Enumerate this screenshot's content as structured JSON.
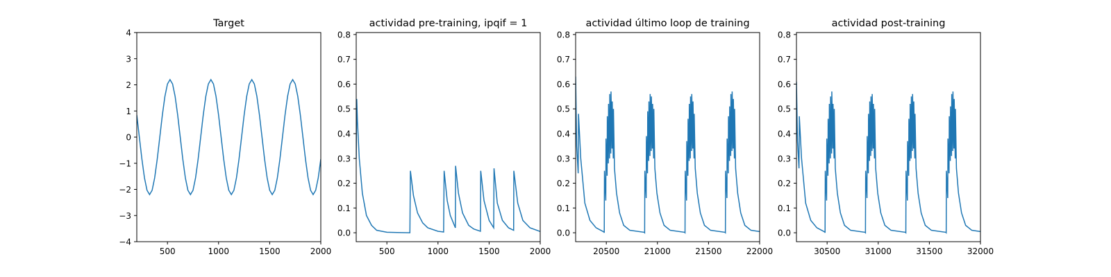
{
  "chart_data": [
    {
      "type": "line",
      "title": "Target",
      "color": "#1f77b4",
      "xlim": [
        200,
        2000
      ],
      "xticks": [
        500,
        1000,
        1500,
        2000
      ],
      "ylim": [
        -4,
        4
      ],
      "yticks": [
        {
          "value": -4,
          "label": "−4"
        },
        {
          "value": -3,
          "label": "−3"
        },
        {
          "value": -2,
          "label": "−2"
        },
        {
          "value": -1,
          "label": "−1"
        },
        0,
        1,
        2,
        3,
        4
      ],
      "x": [
        200,
        225,
        250,
        275,
        300,
        325,
        350,
        375,
        400,
        425,
        450,
        475,
        500,
        525,
        550,
        575,
        600,
        625,
        650,
        675,
        700,
        725,
        750,
        775,
        800,
        825,
        850,
        875,
        900,
        925,
        950,
        975,
        1000,
        1025,
        1050,
        1075,
        1100,
        1125,
        1150,
        1175,
        1200,
        1225,
        1250,
        1275,
        1300,
        1325,
        1350,
        1375,
        1400,
        1425,
        1450,
        1475,
        1500,
        1525,
        1550,
        1575,
        1600,
        1625,
        1650,
        1675,
        1700,
        1725,
        1750,
        1775,
        1800,
        1825,
        1850,
        1875,
        1900,
        1925,
        1950,
        1975,
        2000
      ],
      "values": [
        0.842,
        0,
        -0.842,
        -1.556,
        -2.033,
        -2.2,
        -2.033,
        -1.556,
        -0.842,
        0,
        0.842,
        1.556,
        2.033,
        2.2,
        2.033,
        1.556,
        0.842,
        0,
        -0.842,
        -1.556,
        -2.033,
        -2.2,
        -2.033,
        -1.556,
        -0.842,
        0,
        0.842,
        1.556,
        2.033,
        2.2,
        2.033,
        1.556,
        0.842,
        0,
        -0.842,
        -1.556,
        -2.033,
        -2.2,
        -2.033,
        -1.556,
        -0.842,
        0,
        0.842,
        1.556,
        2.033,
        2.2,
        2.033,
        1.556,
        0.842,
        0,
        -0.842,
        -1.556,
        -2.033,
        -2.2,
        -2.033,
        -1.556,
        -0.842,
        0,
        0.842,
        1.556,
        2.033,
        2.2,
        2.033,
        1.556,
        0.842,
        0,
        -0.842,
        -1.556,
        -2.033,
        -2.2,
        -2.033,
        -1.556,
        -0.842
      ]
    },
    {
      "type": "line",
      "title": "actividad pre-training, ipqif = 1",
      "color": "#1f77b4",
      "xlim": [
        200,
        2000
      ],
      "xticks": [
        500,
        1000,
        1500,
        2000
      ],
      "ylim": [
        -0.036,
        0.808
      ],
      "yticks": [
        {
          "value": 0,
          "label": "0.0"
        },
        0.1,
        0.2,
        0.3,
        0.4,
        0.5,
        0.6,
        0.7,
        0.8
      ],
      "x": [
        200,
        205,
        212,
        230,
        260,
        300,
        350,
        400,
        500,
        600,
        725,
        730,
        760,
        800,
        850,
        900,
        1000,
        1055,
        1060,
        1090,
        1120,
        1170,
        1172,
        1200,
        1240,
        1300,
        1350,
        1415,
        1418,
        1450,
        1500,
        1545,
        1548,
        1580,
        1630,
        1690,
        1740,
        1742,
        1780,
        1830,
        1900,
        2000
      ],
      "values": [
        0.3,
        0.54,
        0.45,
        0.3,
        0.16,
        0.07,
        0.03,
        0.01,
        0.002,
        0.001,
        0.0,
        0.25,
        0.15,
        0.08,
        0.04,
        0.02,
        0.006,
        0.003,
        0.25,
        0.13,
        0.07,
        0.02,
        0.27,
        0.16,
        0.08,
        0.03,
        0.015,
        0.006,
        0.25,
        0.13,
        0.05,
        0.02,
        0.26,
        0.12,
        0.05,
        0.02,
        0.01,
        0.25,
        0.12,
        0.05,
        0.02,
        0.005
      ]
    },
    {
      "type": "line",
      "title": "actividad último loop de training",
      "color": "#1f77b4",
      "xlim": [
        20200,
        22000
      ],
      "xticks": [
        20500,
        21000,
        21500,
        22000
      ],
      "ylim": [
        -0.036,
        0.808
      ],
      "yticks": [
        {
          "value": 0,
          "label": "0.0"
        },
        0.1,
        0.2,
        0.3,
        0.4,
        0.5,
        0.6,
        0.7,
        0.8
      ],
      "x": [
        20200,
        20210,
        20225,
        20228,
        20250,
        20290,
        20340,
        20400,
        20478,
        20480,
        20482,
        20495,
        20497,
        20508,
        20510,
        20520,
        20522,
        20532,
        20534,
        20544,
        20546,
        20556,
        20558,
        20568,
        20570,
        20580,
        20600,
        20630,
        20670,
        20730,
        20870,
        20875,
        20877,
        20890,
        20892,
        20903,
        20905,
        20915,
        20917,
        20927,
        20929,
        20939,
        20941,
        20951,
        20953,
        20963,
        20965,
        20975,
        20995,
        21025,
        21065,
        21125,
        21265,
        21270,
        21272,
        21285,
        21287,
        21298,
        21300,
        21310,
        21312,
        21322,
        21324,
        21334,
        21336,
        21346,
        21348,
        21358,
        21360,
        21370,
        21390,
        21420,
        21460,
        21520,
        21660,
        21665,
        21667,
        21680,
        21682,
        21693,
        21695,
        21705,
        21707,
        21717,
        21719,
        21729,
        21731,
        21741,
        21743,
        21753,
        21755,
        21765,
        21785,
        21815,
        21855,
        21915,
        22000
      ],
      "values": [
        0.63,
        0.35,
        0.24,
        0.48,
        0.3,
        0.12,
        0.05,
        0.02,
        0.003,
        0.0,
        0.25,
        0.13,
        0.38,
        0.23,
        0.47,
        0.28,
        0.52,
        0.3,
        0.56,
        0.32,
        0.57,
        0.34,
        0.53,
        0.3,
        0.5,
        0.26,
        0.16,
        0.08,
        0.03,
        0.01,
        0.002,
        0.0,
        0.25,
        0.14,
        0.39,
        0.24,
        0.49,
        0.29,
        0.53,
        0.31,
        0.56,
        0.33,
        0.55,
        0.34,
        0.52,
        0.3,
        0.5,
        0.26,
        0.16,
        0.08,
        0.03,
        0.01,
        0.002,
        0.0,
        0.25,
        0.13,
        0.37,
        0.23,
        0.46,
        0.29,
        0.52,
        0.3,
        0.55,
        0.33,
        0.56,
        0.34,
        0.53,
        0.3,
        0.48,
        0.26,
        0.16,
        0.08,
        0.03,
        0.01,
        0.002,
        0.0,
        0.25,
        0.14,
        0.38,
        0.24,
        0.47,
        0.29,
        0.51,
        0.31,
        0.56,
        0.33,
        0.57,
        0.34,
        0.54,
        0.3,
        0.5,
        0.26,
        0.16,
        0.08,
        0.03,
        0.01,
        0.005
      ]
    },
    {
      "type": "line",
      "title": "actividad post-training",
      "color": "#1f77b4",
      "xlim": [
        30200,
        32000
      ],
      "xticks": [
        30500,
        31000,
        31500,
        32000
      ],
      "ylim": [
        -0.036,
        0.808
      ],
      "yticks": [
        {
          "value": 0,
          "label": "0.0"
        },
        0.1,
        0.2,
        0.3,
        0.4,
        0.5,
        0.6,
        0.7,
        0.8
      ],
      "x": [
        30200,
        30210,
        30225,
        30228,
        30250,
        30290,
        30340,
        30400,
        30478,
        30480,
        30482,
        30495,
        30497,
        30508,
        30510,
        30520,
        30522,
        30532,
        30534,
        30544,
        30546,
        30556,
        30558,
        30568,
        30570,
        30580,
        30600,
        30630,
        30670,
        30730,
        30870,
        30875,
        30877,
        30890,
        30892,
        30903,
        30905,
        30915,
        30917,
        30927,
        30929,
        30939,
        30941,
        30951,
        30953,
        30963,
        30965,
        30975,
        30995,
        31025,
        31065,
        31125,
        31265,
        31270,
        31272,
        31285,
        31287,
        31298,
        31300,
        31310,
        31312,
        31322,
        31324,
        31334,
        31336,
        31346,
        31348,
        31358,
        31360,
        31370,
        31390,
        31420,
        31460,
        31520,
        31660,
        31665,
        31667,
        31680,
        31682,
        31693,
        31695,
        31705,
        31707,
        31717,
        31719,
        31729,
        31731,
        31741,
        31743,
        31753,
        31755,
        31765,
        31785,
        31815,
        31855,
        31915,
        32000
      ],
      "values": [
        0.61,
        0.37,
        0.26,
        0.47,
        0.3,
        0.12,
        0.05,
        0.02,
        0.003,
        0.0,
        0.25,
        0.13,
        0.38,
        0.23,
        0.46,
        0.28,
        0.52,
        0.3,
        0.55,
        0.32,
        0.57,
        0.34,
        0.52,
        0.3,
        0.5,
        0.26,
        0.16,
        0.08,
        0.03,
        0.01,
        0.002,
        0.0,
        0.25,
        0.14,
        0.39,
        0.24,
        0.48,
        0.29,
        0.53,
        0.31,
        0.55,
        0.33,
        0.56,
        0.34,
        0.52,
        0.3,
        0.5,
        0.26,
        0.16,
        0.08,
        0.03,
        0.01,
        0.002,
        0.0,
        0.25,
        0.13,
        0.37,
        0.23,
        0.46,
        0.29,
        0.52,
        0.3,
        0.55,
        0.33,
        0.56,
        0.34,
        0.53,
        0.3,
        0.48,
        0.26,
        0.16,
        0.08,
        0.03,
        0.01,
        0.002,
        0.0,
        0.25,
        0.14,
        0.38,
        0.24,
        0.47,
        0.29,
        0.51,
        0.31,
        0.56,
        0.33,
        0.57,
        0.34,
        0.54,
        0.3,
        0.5,
        0.26,
        0.16,
        0.08,
        0.03,
        0.01,
        0.005
      ]
    }
  ]
}
